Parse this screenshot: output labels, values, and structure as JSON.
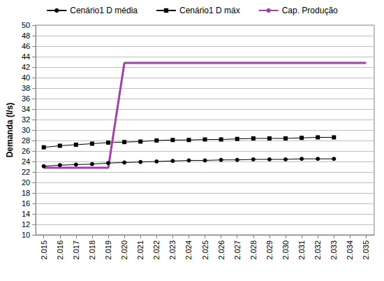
{
  "chart_data": {
    "type": "line",
    "y_label": "Demanda (l/s)",
    "categories": [
      "2.015",
      "2.016",
      "2.017",
      "2.018",
      "2.019",
      "2.020",
      "2.021",
      "2.022",
      "2.023",
      "2.024",
      "2.025",
      "2.026",
      "2.027",
      "2.028",
      "2.029",
      "2.030",
      "2.031",
      "2.032",
      "2.033",
      "2.034",
      "2.035"
    ],
    "series": [
      {
        "name": "Cenário1 D média",
        "color": "#000000",
        "marker": "circle",
        "values": [
          23.1,
          23.3,
          23.4,
          23.5,
          23.7,
          23.8,
          23.9,
          24.0,
          24.1,
          24.2,
          24.2,
          24.3,
          24.3,
          24.4,
          24.4,
          24.4,
          24.5,
          24.5,
          24.5,
          null,
          null
        ]
      },
      {
        "name": "Cenário1 D máx",
        "color": "#000000",
        "marker": "square",
        "values": [
          26.7,
          27.0,
          27.2,
          27.4,
          27.6,
          27.7,
          27.8,
          28.0,
          28.1,
          28.1,
          28.2,
          28.2,
          28.3,
          28.4,
          28.4,
          28.4,
          28.5,
          28.6,
          28.6,
          null,
          null
        ]
      },
      {
        "name": "Cap. Produção",
        "color": "#a040a8",
        "marker": "none",
        "values": [
          22.8,
          22.8,
          22.8,
          22.8,
          22.8,
          42.8,
          42.8,
          42.8,
          42.8,
          42.8,
          42.8,
          42.8,
          42.8,
          42.8,
          42.8,
          42.8,
          42.8,
          42.8,
          42.8,
          42.8,
          42.8
        ]
      }
    ],
    "ylim": [
      10,
      50
    ],
    "yticks": [
      10,
      12,
      14,
      16,
      18,
      20,
      22,
      24,
      26,
      28,
      30,
      32,
      34,
      36,
      38,
      40,
      42,
      44,
      46,
      48,
      50
    ],
    "grid": true,
    "legend": "top"
  }
}
